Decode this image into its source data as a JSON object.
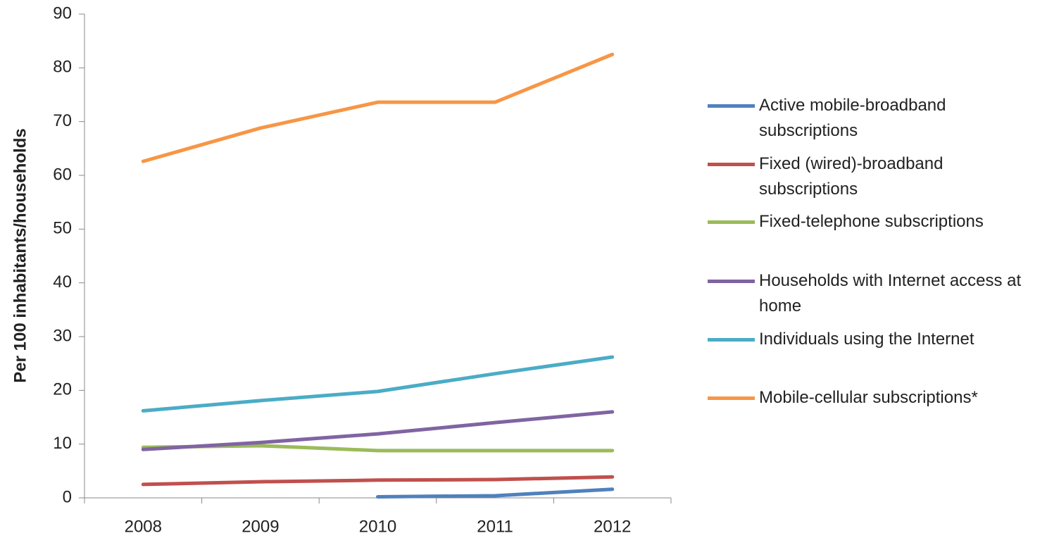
{
  "chart_data": {
    "type": "line",
    "y_label": "Per 100 inhabitants/households",
    "categories": [
      "2008",
      "2009",
      "2010",
      "2011",
      "2012"
    ],
    "series": [
      {
        "name": "Active mobile-broadband subscriptions",
        "color": "#4f81bd",
        "values": [
          null,
          null,
          0.2,
          0.4,
          1.6
        ]
      },
      {
        "name": "Fixed (wired)-broadband subscriptions",
        "color": "#c0504d",
        "values": [
          2.5,
          3.0,
          3.3,
          3.4,
          3.9
        ]
      },
      {
        "name": "Fixed-telephone subscriptions",
        "color": "#9bbb59",
        "values": [
          9.4,
          9.7,
          8.8,
          8.8,
          8.8
        ]
      },
      {
        "name": "Households with Internet access at home",
        "color": "#8064a2",
        "values": [
          9.0,
          10.3,
          11.9,
          14.0,
          16.0
        ]
      },
      {
        "name": "Individuals using the Internet",
        "color": "#4bacc6",
        "values": [
          16.2,
          18.1,
          19.8,
          23.1,
          26.2
        ]
      },
      {
        "name": "Mobile-cellular subscriptions*",
        "color": "#f79646",
        "values": [
          62.6,
          68.8,
          73.6,
          73.6,
          82.5
        ]
      }
    ],
    "ylim": [
      0,
      90
    ],
    "yticks": [
      0,
      10,
      20,
      30,
      40,
      50,
      60,
      70,
      80,
      90
    ],
    "grid": false,
    "legend": "right"
  }
}
